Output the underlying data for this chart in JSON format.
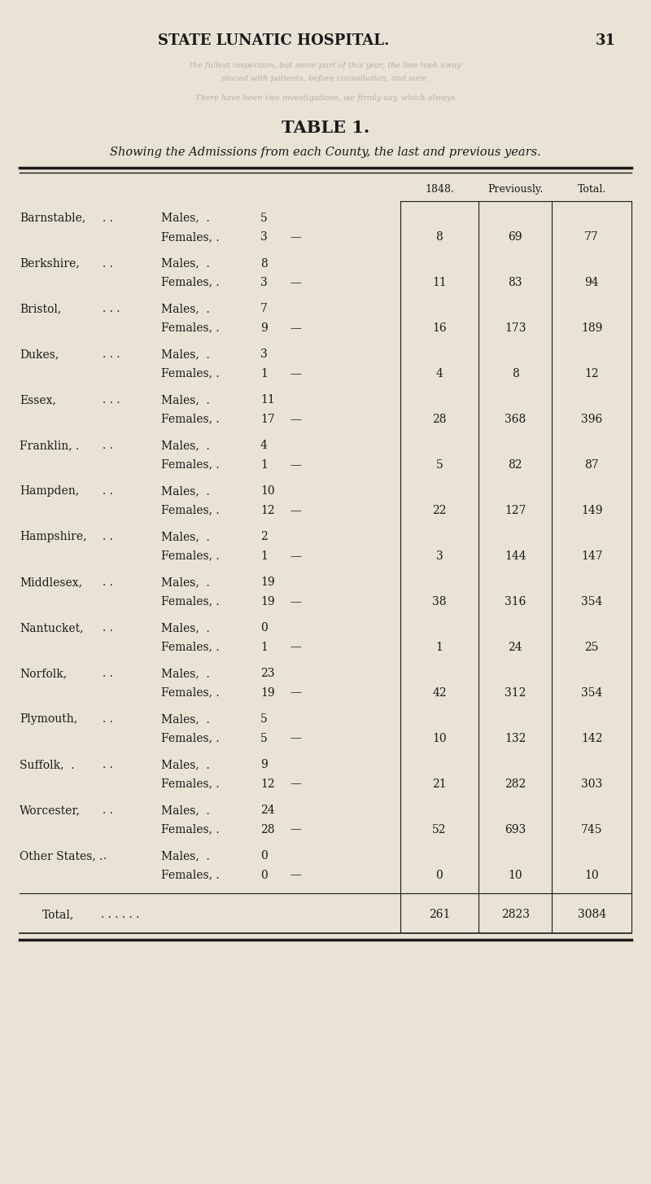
{
  "page_header": "STATE LUNATIC HOSPITAL.",
  "page_number": "31",
  "table_title": "TABLE 1.",
  "table_subtitle": "Showing the Admissions from each County, the last and previous years.",
  "col_headers": [
    "1848.",
    "Previously.",
    "Total."
  ],
  "rows": [
    {
      "county": "Barnstable,",
      "dots": ". .",
      "males": 5,
      "females": 3,
      "total_1848": 8,
      "previously": 69,
      "total": 77
    },
    {
      "county": "Berkshire,",
      "dots": ". .",
      "males": 8,
      "females": 3,
      "total_1848": 11,
      "previously": 83,
      "total": 94
    },
    {
      "county": "Bristol,",
      "dots": ". . .",
      "males": 7,
      "females": 9,
      "total_1848": 16,
      "previously": 173,
      "total": 189
    },
    {
      "county": "Dukes,",
      "dots": ". . .",
      "males": 3,
      "females": 1,
      "total_1848": 4,
      "previously": 8,
      "total": 12
    },
    {
      "county": "Essex,",
      "dots": ". . .",
      "males": 11,
      "females": 17,
      "total_1848": 28,
      "previously": 368,
      "total": 396
    },
    {
      "county": "Franklin, .",
      "dots": ". .",
      "males": 4,
      "females": 1,
      "total_1848": 5,
      "previously": 82,
      "total": 87
    },
    {
      "county": "Hampden,",
      "dots": ". .",
      "males": 10,
      "females": 12,
      "total_1848": 22,
      "previously": 127,
      "total": 149
    },
    {
      "county": "Hampshire,",
      "dots": ". .",
      "males": 2,
      "females": 1,
      "total_1848": 3,
      "previously": 144,
      "total": 147
    },
    {
      "county": "Middlesex,",
      "dots": ". .",
      "males": 19,
      "females": 19,
      "total_1848": 38,
      "previously": 316,
      "total": 354
    },
    {
      "county": "Nantucket,",
      "dots": ". .",
      "males": 0,
      "females": 1,
      "total_1848": 1,
      "previously": 24,
      "total": 25
    },
    {
      "county": "Norfolk,",
      "dots": ". .",
      "males": 23,
      "females": 19,
      "total_1848": 42,
      "previously": 312,
      "total": 354
    },
    {
      "county": "Plymouth,",
      "dots": ". .",
      "males": 5,
      "females": 5,
      "total_1848": 10,
      "previously": 132,
      "total": 142
    },
    {
      "county": "Suffolk,  .",
      "dots": ". .",
      "males": 9,
      "females": 12,
      "total_1848": 21,
      "previously": 282,
      "total": 303
    },
    {
      "county": "Worcester,",
      "dots": ". .",
      "males": 24,
      "females": 28,
      "total_1848": 52,
      "previously": 693,
      "total": 745
    },
    {
      "county": "Other States, .",
      "dots": ".",
      "males": 0,
      "females": 0,
      "total_1848": 0,
      "previously": 10,
      "total": 10
    }
  ],
  "total_row": {
    "label": "Total,",
    "total_1848": 261,
    "previously": 2823,
    "total": 3084
  },
  "bg_color": "#e8e3d5",
  "text_color": "#1a1a1a",
  "figsize": [
    8.0,
    14.54
  ],
  "dpi": 100
}
